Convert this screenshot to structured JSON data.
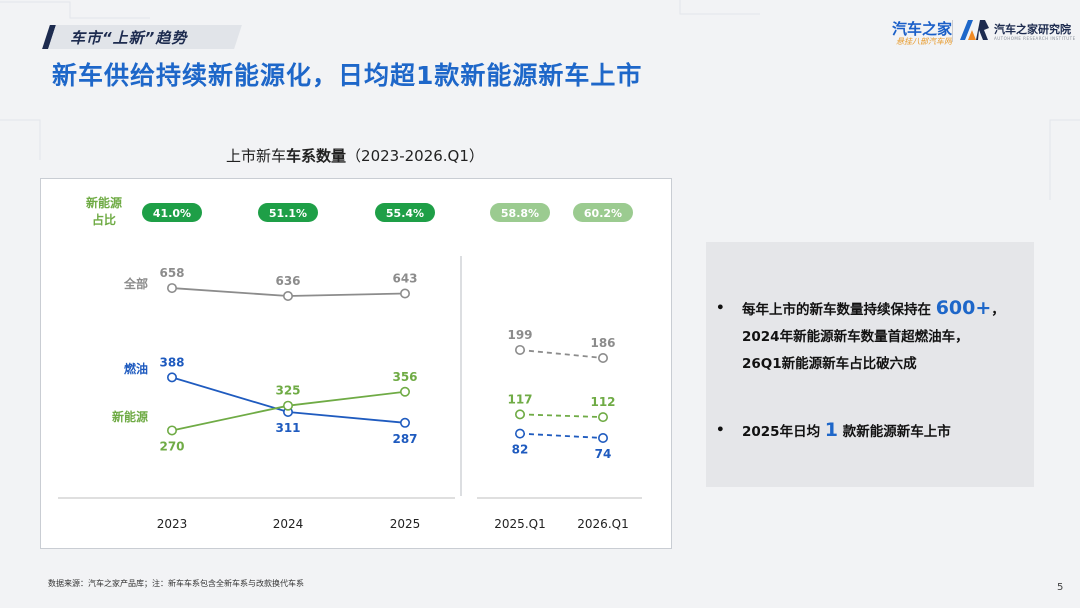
{
  "header": {
    "tag": "车市“上新”趋势",
    "headline": "新车供给持续新能源化，日均超1款新能源新车上市",
    "logo_autohome": "汽车之家",
    "logo_autohome_sub": "悬挂八部汽车网",
    "logo_research": "汽车之家研究院",
    "logo_research_sub": "AUTOHOME RESEARCH INSTITUTE"
  },
  "chart_title": {
    "prefix": "上市新车",
    "bold": "车系数量",
    "suffix": "（2023-2026.Q1）"
  },
  "chart_data": {
    "type": "line",
    "title": "上市新车车系数量（2023-2026.Q1）",
    "categories": [
      "2023",
      "2024",
      "2025",
      "2025.Q1",
      "2026.Q1"
    ],
    "row_labels": {
      "share": "新能源\n占比",
      "total": "全部",
      "fuel": "燃油",
      "nev": "新能源"
    },
    "nev_share": [
      "41.0%",
      "51.1%",
      "55.4%",
      "58.8%",
      "60.2%"
    ],
    "annual": {
      "categories": [
        "2023",
        "2024",
        "2025"
      ],
      "series": [
        {
          "name": "全部",
          "values": [
            658,
            636,
            643
          ],
          "color": "#8c8c8c"
        },
        {
          "name": "燃油",
          "values": [
            388,
            311,
            287
          ],
          "color": "#1f5bbf"
        },
        {
          "name": "新能源",
          "values": [
            270,
            325,
            356
          ],
          "color": "#6fab45"
        }
      ]
    },
    "quarterly": {
      "categories": [
        "2025.Q1",
        "2026.Q1"
      ],
      "series": [
        {
          "name": "全部",
          "values": [
            199,
            186
          ],
          "color": "#8c8c8c"
        },
        {
          "name": "燃油",
          "values": [
            82,
            74
          ],
          "color": "#1f5bbf"
        },
        {
          "name": "新能源",
          "values": [
            117,
            112
          ],
          "color": "#6fab45"
        }
      ]
    },
    "share_colors": {
      "annual": "#1e9f47",
      "quarterly": "#9bcb90"
    }
  },
  "panel": {
    "bullet1_a": "每年上市的新车数量持续保持在",
    "bullet1_big": "600+",
    "bullet1_b": "，",
    "bullet1_line2": "2024年新能源新车数量首超燃油车，",
    "bullet1_line3": "26Q1新能源新车占比破六成",
    "bullet2_a": "2025年日均",
    "bullet2_big": "1",
    "bullet2_b": "款新能源新车上市",
    "bullet_mark": "•"
  },
  "footnote": "数据来源：汽车之家产品库；注：新车车系包含全新车系与改款换代车系",
  "page_number": "5"
}
